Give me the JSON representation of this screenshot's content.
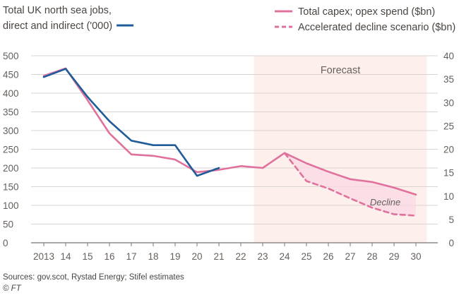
{
  "chart_data": {
    "type": "line",
    "title_left": [
      "Total UK north sea jobs,",
      "direct and indirect ('000)"
    ],
    "title_right": "Total capex; opex spend ($bn)",
    "legend": [
      {
        "name": "Total UK north sea jobs, direct and indirect ('000)",
        "color": "#1f5c99",
        "style": "solid"
      },
      {
        "name": "Total capex; opex spend ($bn)",
        "color": "#e0719c",
        "style": "solid"
      },
      {
        "name": "Accelerated decline scenario ($bn)",
        "color": "#e0719c",
        "style": "dashed"
      }
    ],
    "x_labels": [
      "2013",
      "14",
      "15",
      "16",
      "17",
      "18",
      "19",
      "20",
      "21",
      "22",
      "23",
      "24",
      "25",
      "26",
      "27",
      "28",
      "29",
      "30"
    ],
    "left_axis": {
      "min": 0,
      "max": 500,
      "ticks": [
        0,
        50,
        100,
        150,
        200,
        250,
        300,
        350,
        400,
        450,
        500
      ]
    },
    "right_axis": {
      "min": 0,
      "max": 40,
      "ticks": [
        0,
        5,
        10,
        15,
        20,
        25,
        30,
        35,
        40
      ]
    },
    "series": [
      {
        "name": "Total UK north sea jobs, direct and indirect ('000)",
        "axis": "left",
        "color": "#1f5c99",
        "x": [
          2013,
          2014,
          2015,
          2016,
          2017,
          2018,
          2019,
          2020,
          2021
        ],
        "values": [
          443,
          465,
          390,
          325,
          273,
          261,
          261,
          179,
          200
        ]
      },
      {
        "name": "Total capex; opex spend ($bn)",
        "axis": "right",
        "color": "#e0719c",
        "x": [
          2013,
          2014,
          2015,
          2016,
          2017,
          2018,
          2019,
          2020,
          2021,
          2022,
          2023,
          2024,
          2025,
          2026,
          2027,
          2028,
          2029,
          2030
        ],
        "values": [
          35.7,
          37.3,
          30.5,
          23.4,
          18.9,
          18.6,
          17.8,
          15.1,
          15.6,
          16.4,
          16.0,
          19.2,
          17.0,
          15.2,
          13.6,
          13.0,
          11.8,
          10.3
        ]
      },
      {
        "name": "Accelerated decline scenario ($bn)",
        "axis": "right",
        "color": "#e0719c",
        "dashed": true,
        "x": [
          2024,
          2025,
          2026,
          2027,
          2028,
          2029,
          2030
        ],
        "values": [
          19.2,
          13.2,
          11.6,
          9.5,
          7.5,
          6.1,
          5.8
        ]
      }
    ],
    "forecast_region": {
      "from": 2022.6,
      "to": 2030.5,
      "label": "Forecast",
      "color": "#fdf0ec"
    },
    "decline_label": "Decline",
    "sources": "Sources: gov.scot, Rystad Energy; Stifel estimates",
    "credit": "© FT"
  }
}
